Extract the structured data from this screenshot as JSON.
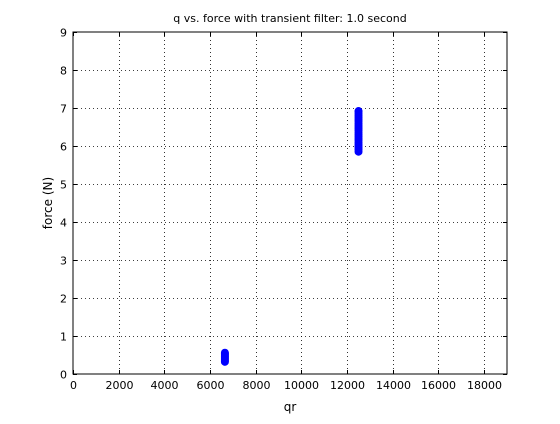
{
  "chart_data": {
    "type": "scatter",
    "title": "q vs. force with transient filter: 1.0 second",
    "xlabel": "qr",
    "ylabel": "force (N)",
    "xlim": [
      0,
      19000
    ],
    "ylim": [
      0,
      9
    ],
    "xticks": [
      0,
      2000,
      4000,
      6000,
      8000,
      10000,
      12000,
      14000,
      16000,
      18000
    ],
    "yticks": [
      0,
      1,
      2,
      3,
      4,
      5,
      6,
      7,
      8,
      9
    ],
    "grid": true,
    "marker_color": "#0000ff",
    "series": [
      {
        "x": [
          6650,
          6650,
          6650,
          6650,
          6650,
          6650,
          6650,
          6650,
          6650,
          12500,
          12500,
          12500,
          12500,
          12500,
          12500,
          12500,
          12500,
          12500,
          12500,
          12500,
          12500,
          12500,
          12500,
          12500,
          12500,
          12500,
          12500,
          12500,
          12500,
          12500,
          12500,
          12500
        ],
        "y": [
          0.32,
          0.35,
          0.38,
          0.41,
          0.44,
          0.47,
          0.5,
          0.53,
          0.56,
          5.85,
          5.9,
          5.95,
          6.0,
          6.05,
          6.1,
          6.15,
          6.2,
          6.25,
          6.3,
          6.35,
          6.4,
          6.45,
          6.5,
          6.55,
          6.6,
          6.65,
          6.7,
          6.75,
          6.8,
          6.85,
          6.9,
          6.92
        ]
      }
    ]
  }
}
